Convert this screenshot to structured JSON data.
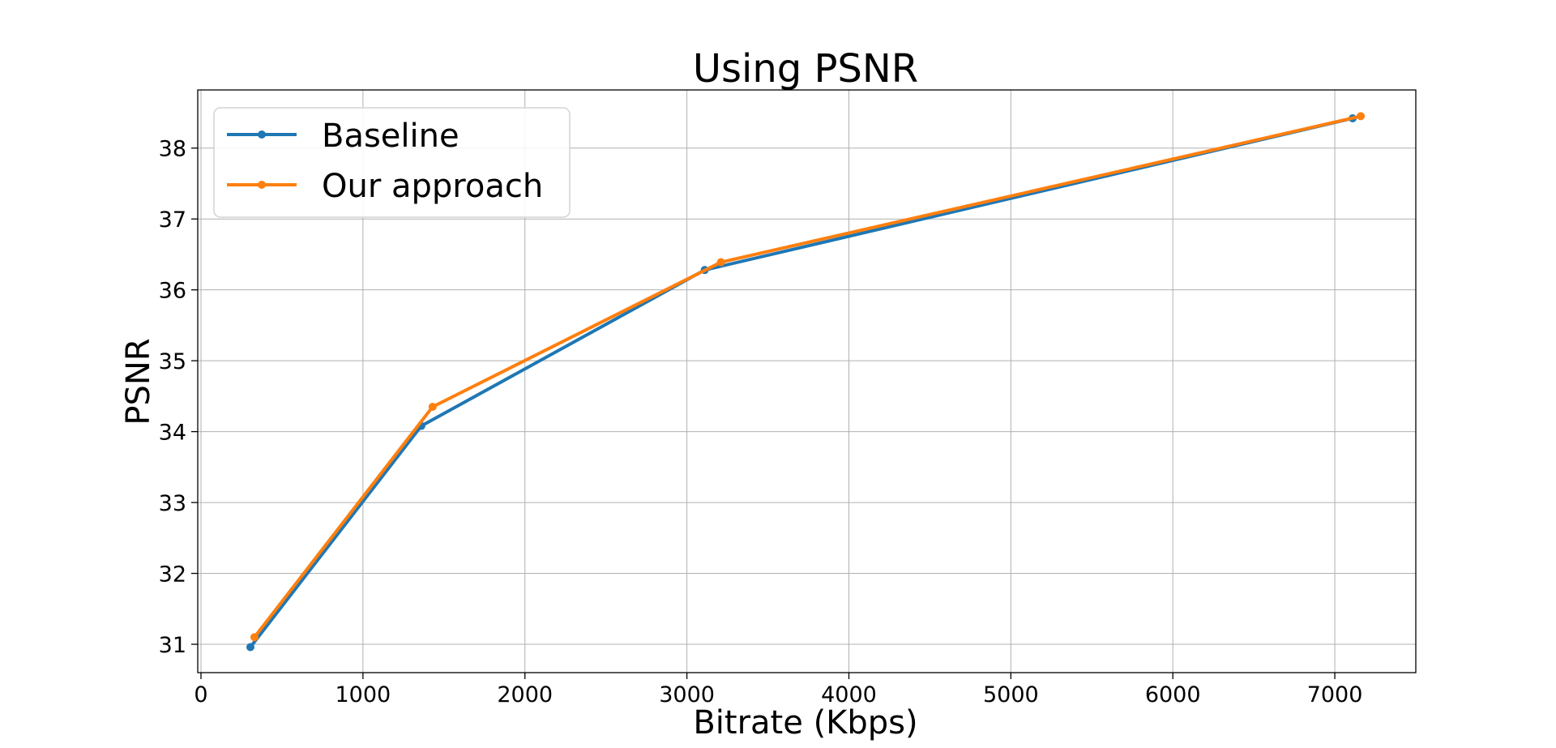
{
  "chart_data": {
    "type": "line",
    "title": "Using PSNR",
    "xlabel": "Bitrate (Kbps)",
    "ylabel": "PSNR",
    "xlim": [
      -20,
      7500
    ],
    "ylim": [
      30.6,
      38.82
    ],
    "xticks": [
      0,
      1000,
      2000,
      3000,
      4000,
      5000,
      6000,
      7000
    ],
    "xtick_labels": [
      "0",
      "1000",
      "2000",
      "3000",
      "4000",
      "5000",
      "6000",
      "7000"
    ],
    "yticks": [
      31,
      32,
      33,
      34,
      35,
      36,
      37,
      38
    ],
    "ytick_labels": [
      "31",
      "32",
      "33",
      "34",
      "35",
      "36",
      "37",
      "38"
    ],
    "grid": true,
    "legend": "upper-left",
    "series": [
      {
        "name": "Baseline",
        "color": "#1f77b4",
        "x": [
          305,
          1360,
          3110,
          7110
        ],
        "y": [
          30.96,
          34.08,
          36.28,
          38.42
        ]
      },
      {
        "name": "Our approach",
        "color": "#ff7f0e",
        "x": [
          330,
          1430,
          3210,
          7160
        ],
        "y": [
          31.1,
          34.35,
          36.39,
          38.45
        ]
      }
    ]
  }
}
